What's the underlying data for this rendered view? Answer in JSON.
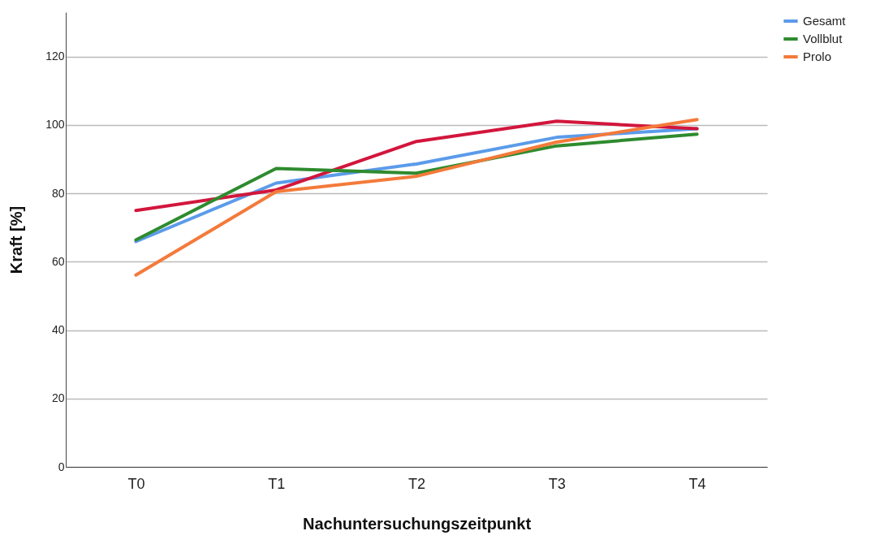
{
  "chart_data": {
    "type": "line",
    "xlabel": "Nachuntersuchungszeitpunkt",
    "ylabel": "Kraft [%]",
    "categories": [
      "T0",
      "T1",
      "T2",
      "T3",
      "T4"
    ],
    "series": [
      {
        "name": "Gesamt",
        "color": "#5b9bea",
        "values": [
          65.9,
          83,
          88.6,
          96.4,
          98.9
        ]
      },
      {
        "color": "#d2163c",
        "values": [
          75,
          81,
          95.2,
          101.1,
          98.9
        ]
      },
      {
        "name": "Vollblut",
        "color": "#2e8b2e",
        "values": [
          66.4,
          87.3,
          85.9,
          93.9,
          97.3
        ]
      },
      {
        "name": "Prolo",
        "color": "#f47a3a",
        "values": [
          56.1,
          80.5,
          85,
          95,
          101.6
        ]
      }
    ],
    "ylim": [
      0,
      133
    ],
    "yticks": [
      0,
      20,
      40,
      60,
      80,
      100,
      120
    ],
    "grid": "y",
    "legend": "top right",
    "marker": "none",
    "line_style": "solid"
  }
}
